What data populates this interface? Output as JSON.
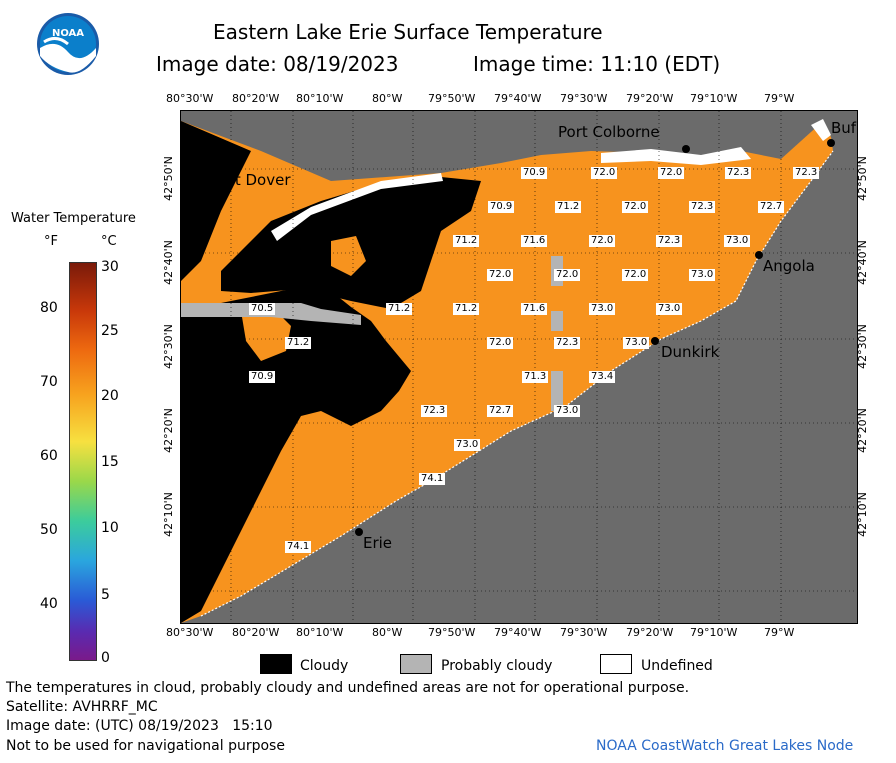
{
  "header": {
    "title": "Eastern Lake Erie Surface Temperature",
    "image_date": "Image date: 08/19/2023",
    "image_time": "Image time: 11:10 (EDT)"
  },
  "logo": {
    "text": "NOAA"
  },
  "colorbar": {
    "title": "Water Temperature",
    "f_label": "°F",
    "c_label": "°C",
    "f_ticks": [
      "80",
      "70",
      "60",
      "50",
      "40"
    ],
    "c_ticks": [
      "30",
      "25",
      "20",
      "15",
      "10",
      "5",
      "0"
    ]
  },
  "axes": {
    "lon_ticks": [
      "80°30'W",
      "80°20'W",
      "80°10'W",
      "80°W",
      "79°50'W",
      "79°40'W",
      "79°30'W",
      "79°20'W",
      "79°10'W",
      "79°W"
    ],
    "lat_ticks": [
      "42°50'N",
      "42°40'N",
      "42°30'N",
      "42°20'N",
      "42°10'N"
    ]
  },
  "cities": {
    "port_dover": "Port Dover",
    "port_colborne": "Port Colborne",
    "buffalo": "Buf",
    "angola": "Angola",
    "dunkirk": "Dunkirk",
    "erie": "Erie"
  },
  "temperatures": [
    {
      "v": "70.9"
    },
    {
      "v": "72.0"
    },
    {
      "v": "72.0"
    },
    {
      "v": "72.3"
    },
    {
      "v": "72.3"
    },
    {
      "v": "70.9"
    },
    {
      "v": "71.2"
    },
    {
      "v": "72.0"
    },
    {
      "v": "72.3"
    },
    {
      "v": "72.7"
    },
    {
      "v": "71.2"
    },
    {
      "v": "71.6"
    },
    {
      "v": "72.0"
    },
    {
      "v": "72.3"
    },
    {
      "v": "73.0"
    },
    {
      "v": "72.0"
    },
    {
      "v": "72.0"
    },
    {
      "v": "72.0"
    },
    {
      "v": "73.0"
    },
    {
      "v": "70.5"
    },
    {
      "v": "71.2"
    },
    {
      "v": "71.2"
    },
    {
      "v": "71.6"
    },
    {
      "v": "73.0"
    },
    {
      "v": "73.0"
    },
    {
      "v": "71.2"
    },
    {
      "v": "72.0"
    },
    {
      "v": "72.3"
    },
    {
      "v": "73.0"
    },
    {
      "v": "70.9"
    },
    {
      "v": "71.3"
    },
    {
      "v": "73.4"
    },
    {
      "v": "72.3"
    },
    {
      "v": "72.7"
    },
    {
      "v": "73.0"
    },
    {
      "v": "73.0"
    },
    {
      "v": "74.1"
    },
    {
      "v": "74.1"
    }
  ],
  "legend": {
    "cloudy": "Cloudy",
    "probably_cloudy": "Probably cloudy",
    "undefined": "Undefined"
  },
  "footer": {
    "disclaimer": "The temperatures in cloud, probably cloudy and undefined areas are not for operational purpose.",
    "satellite": "Satellite: AVHRRF_MC",
    "utc_date": "Image date: (UTC) 08/19/2023   15:10",
    "nav": "Not to be used for navigational purpose",
    "credit": "NOAA CoastWatch Great Lakes Node"
  },
  "colors": {
    "land": "#6b6b6b",
    "water": "#f7931e",
    "cloud": "#000000",
    "probably_cloudy": "#b4b4b4",
    "undefined": "#ffffff"
  }
}
